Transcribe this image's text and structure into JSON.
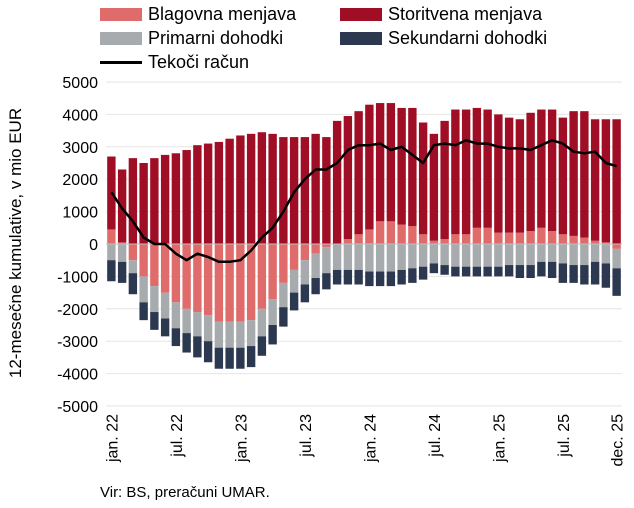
{
  "chart_data": {
    "type": "bar",
    "stacked": true,
    "ylabel": "12-mesečne kumulative, v mio EUR",
    "ylim": [
      -5000,
      5000
    ],
    "yticks": [
      "5000",
      "4000",
      "3000",
      "2000",
      "1000",
      "0",
      "-1000",
      "-2000",
      "-3000",
      "-4000",
      "-5000"
    ],
    "xticks": [
      "jan. 22",
      "jul. 22",
      "jan. 23",
      "jul. 23",
      "jan. 24",
      "jul. 24",
      "jan. 25",
      "jul. 25",
      "dec. 25"
    ],
    "legend_position": "top",
    "categories": [
      "2022-01",
      "2022-02",
      "2022-03",
      "2022-04",
      "2022-05",
      "2022-06",
      "2022-07",
      "2022-08",
      "2022-09",
      "2022-10",
      "2022-11",
      "2022-12",
      "2023-01",
      "2023-02",
      "2023-03",
      "2023-04",
      "2023-05",
      "2023-06",
      "2023-07",
      "2023-08",
      "2023-09",
      "2023-10",
      "2023-11",
      "2023-12",
      "2024-01",
      "2024-02",
      "2024-03",
      "2024-04",
      "2024-05",
      "2024-06",
      "2024-07",
      "2024-08",
      "2024-09",
      "2024-10",
      "2024-11",
      "2024-12",
      "2025-01",
      "2025-02",
      "2025-03",
      "2025-04",
      "2025-05",
      "2025-06",
      "2025-07",
      "2025-08",
      "2025-09",
      "2025-10",
      "2025-11",
      "2025-12"
    ],
    "series": [
      {
        "name": "Blagovna menjava",
        "type": "bar",
        "color": "#e06b6b",
        "values": [
          450,
          50,
          -500,
          -1000,
          -1300,
          -1500,
          -1800,
          -2000,
          -2100,
          -2200,
          -2400,
          -2400,
          -2400,
          -2350,
          -2000,
          -1700,
          -1200,
          -800,
          -500,
          -300,
          -100,
          0,
          150,
          300,
          450,
          700,
          700,
          600,
          550,
          300,
          100,
          150,
          300,
          300,
          500,
          500,
          350,
          350,
          350,
          400,
          500,
          400,
          300,
          250,
          200,
          100,
          50,
          -150
        ]
      },
      {
        "name": "Storitvena menjava",
        "type": "bar",
        "color": "#a00e25",
        "values": [
          2250,
          2250,
          2650,
          2500,
          2650,
          2750,
          2800,
          2900,
          3050,
          3100,
          3150,
          3250,
          3350,
          3400,
          3450,
          3400,
          3300,
          3300,
          3300,
          3400,
          3300,
          3800,
          3800,
          3800,
          3850,
          3650,
          3650,
          3600,
          3650,
          3450,
          3300,
          3650,
          3850,
          3850,
          3700,
          3650,
          3650,
          3550,
          3500,
          3650,
          3650,
          3750,
          3600,
          3850,
          3900,
          3750,
          3800,
          3850
        ]
      },
      {
        "name": "Primarni dohodki",
        "type": "bar",
        "color": "#a7abae",
        "values": [
          -500,
          -550,
          -400,
          -800,
          -800,
          -800,
          -800,
          -750,
          -750,
          -800,
          -800,
          -800,
          -800,
          -800,
          -850,
          -800,
          -750,
          -700,
          -750,
          -750,
          -800,
          -800,
          -800,
          -800,
          -850,
          -850,
          -850,
          -800,
          -750,
          -700,
          -600,
          -650,
          -700,
          -700,
          -700,
          -700,
          -700,
          -650,
          -650,
          -650,
          -550,
          -550,
          -600,
          -650,
          -650,
          -550,
          -600,
          -600
        ]
      },
      {
        "name": "Sekundarni dohodki",
        "type": "bar",
        "color": "#2c3850",
        "values": [
          -650,
          -650,
          -650,
          -550,
          -550,
          -550,
          -550,
          -600,
          -650,
          -650,
          -650,
          -650,
          -650,
          -650,
          -600,
          -600,
          -600,
          -550,
          -550,
          -500,
          -500,
          -450,
          -450,
          -450,
          -450,
          -450,
          -450,
          -450,
          -450,
          -400,
          -300,
          -300,
          -300,
          -300,
          -300,
          -300,
          -300,
          -350,
          -400,
          -400,
          -450,
          -500,
          -600,
          -550,
          -600,
          -700,
          -750,
          -850
        ]
      },
      {
        "name": "Tekoči račun",
        "type": "line",
        "color": "#000000",
        "values": [
          1600,
          1100,
          700,
          200,
          0,
          0,
          -300,
          -500,
          -300,
          -400,
          -550,
          -550,
          -500,
          -200,
          200,
          500,
          1000,
          1600,
          2000,
          2300,
          2300,
          2500,
          2900,
          3050,
          3050,
          3100,
          2900,
          3000,
          2750,
          2500,
          3050,
          3100,
          3050,
          3200,
          3100,
          3100,
          3000,
          2950,
          2950,
          2900,
          3050,
          3200,
          3100,
          2850,
          2800,
          2850,
          2500,
          2400
        ]
      }
    ]
  },
  "source": "Vir: BS, preračuni UMAR."
}
